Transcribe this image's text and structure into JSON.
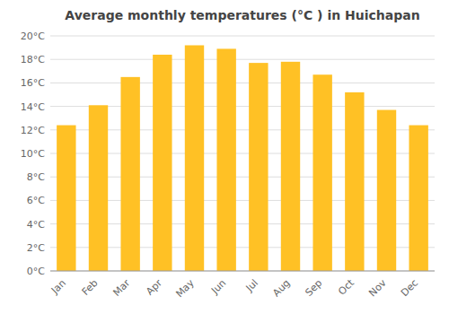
{
  "chart_data": {
    "type": "bar",
    "title": "Average monthly temperatures (°C ) in Huichapan",
    "categories": [
      "Jan",
      "Feb",
      "Mar",
      "Apr",
      "May",
      "Jun",
      "Jul",
      "Aug",
      "Sep",
      "Oct",
      "Nov",
      "Dec"
    ],
    "values": [
      12.4,
      14.1,
      16.5,
      18.4,
      19.2,
      18.9,
      17.7,
      17.8,
      16.7,
      15.2,
      13.7,
      12.4
    ],
    "color": "#FFC125",
    "ylim": [
      0,
      20
    ],
    "yticks": [
      {
        "value": 0,
        "label": "0°C"
      },
      {
        "value": 2,
        "label": "2°C"
      },
      {
        "value": 4,
        "label": "4°C"
      },
      {
        "value": 6,
        "label": "6°C"
      },
      {
        "value": 8,
        "label": "8°C"
      },
      {
        "value": 10,
        "label": "10°C"
      },
      {
        "value": 12,
        "label": "12°C"
      },
      {
        "value": 14,
        "label": "14°C"
      },
      {
        "value": 16,
        "label": "16°C"
      },
      {
        "value": 18,
        "label": "18°C"
      },
      {
        "value": 20,
        "label": "20°C"
      }
    ],
    "grid": true
  }
}
